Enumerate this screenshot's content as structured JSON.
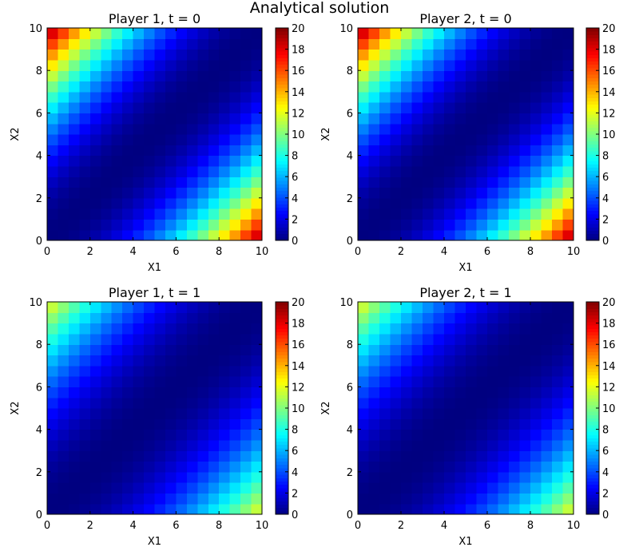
{
  "figure": {
    "suptitle": "Analytical solution"
  },
  "colorbar_ticks": [
    "0",
    "2",
    "4",
    "6",
    "8",
    "10",
    "12",
    "14",
    "16",
    "18",
    "20"
  ],
  "colormap": "jet",
  "chart_data": [
    {
      "type": "heatmap",
      "title": "Player 1, t = 0",
      "xlabel": "X1",
      "ylabel": "X2",
      "xlim": [
        0,
        10
      ],
      "ylim": [
        0,
        10
      ],
      "xticks": [
        "0",
        "2",
        "4",
        "6",
        "8",
        "10"
      ],
      "yticks": [
        "0",
        "2",
        "4",
        "6",
        "8",
        "10"
      ],
      "grid_cells": 20,
      "vmin": 0,
      "vmax": 20,
      "values_formula": "(x2 - x1)^2 / 5",
      "corner_values": {
        "top_left": 19.6,
        "bottom_right": 19.6,
        "diagonal": 0
      }
    },
    {
      "type": "heatmap",
      "title": "Player 2, t = 0",
      "xlabel": "X1",
      "ylabel": "X2",
      "xlim": [
        0,
        10
      ],
      "ylim": [
        0,
        10
      ],
      "xticks": [
        "0",
        "2",
        "4",
        "6",
        "8",
        "10"
      ],
      "yticks": [
        "0",
        "2",
        "4",
        "6",
        "8",
        "10"
      ],
      "grid_cells": 20,
      "vmin": 0,
      "vmax": 20,
      "values_formula": "(x2 - x1)^2 / 5",
      "corner_values": {
        "top_left": 19.6,
        "bottom_right": 19.6,
        "diagonal": 0
      }
    },
    {
      "type": "heatmap",
      "title": "Player 1, t = 1",
      "xlabel": "X1",
      "ylabel": "X2",
      "xlim": [
        0,
        10
      ],
      "ylim": [
        0,
        10
      ],
      "xticks": [
        "0",
        "2",
        "4",
        "6",
        "8",
        "10"
      ],
      "yticks": [
        "0",
        "2",
        "4",
        "6",
        "8",
        "10"
      ],
      "grid_cells": 20,
      "vmin": 0,
      "vmax": 20,
      "values_formula": "(x2 - x1)^2 / 8",
      "corner_values": {
        "top_left": 12.3,
        "bottom_right": 12.3,
        "diagonal": 0
      }
    },
    {
      "type": "heatmap",
      "title": "Player 2, t = 1",
      "xlabel": "X1",
      "ylabel": "X2",
      "xlim": [
        0,
        10
      ],
      "ylim": [
        0,
        10
      ],
      "xticks": [
        "0",
        "2",
        "4",
        "6",
        "8",
        "10"
      ],
      "yticks": [
        "0",
        "2",
        "4",
        "6",
        "8",
        "10"
      ],
      "grid_cells": 20,
      "vmin": 0,
      "vmax": 20,
      "values_formula": "(x2 - x1)^2 / 8",
      "corner_values": {
        "top_left": 12.3,
        "bottom_right": 12.3,
        "diagonal": 0
      }
    }
  ]
}
